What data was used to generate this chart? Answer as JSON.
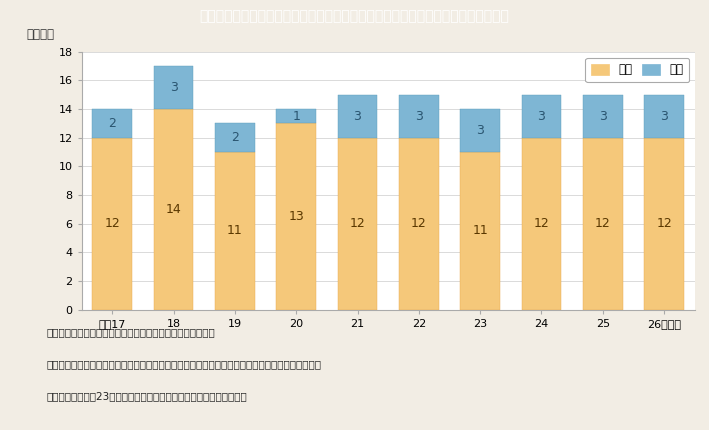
{
  "title": "Ｉ－５－６図　非就業者のうち介護・看護を理由とした離職者数の推移（男女別）",
  "ylabel": "（万人）",
  "xlabel_suffix": "（年）",
  "categories": [
    "平成17",
    "18",
    "19",
    "20",
    "21",
    "22",
    "23",
    "24",
    "25",
    "26"
  ],
  "female_values": [
    12,
    14,
    11,
    13,
    12,
    12,
    11,
    12,
    12,
    12
  ],
  "male_values": [
    2,
    3,
    2,
    1,
    3,
    3,
    3,
    3,
    3,
    3
  ],
  "female_color": "#F5C87A",
  "male_color": "#7EB6D4",
  "female_label": "女性",
  "male_label": "男性",
  "ylim": [
    0,
    18
  ],
  "yticks": [
    0,
    2,
    4,
    6,
    8,
    10,
    12,
    14,
    16,
    18
  ],
  "title_bg_color": "#18C0CC",
  "title_text_color": "#ffffff",
  "background_color": "#F2EDE4",
  "plot_bg_color": "#ffffff",
  "notes": [
    "（備考）１．総務省「労働力調査（詳細集計）」より作成。",
    "　　　　２．前職が非農林業雇用者で過去３年間の離職者のうち，現在，就業している者を除く。",
    "　　　　３．平成23年の数値は，岩手県，宮城県及び福島県を除く。"
  ],
  "note_fontsize": 7.5,
  "bar_label_fontsize": 9,
  "tick_fontsize": 8,
  "title_fontsize": 10,
  "legend_fontsize": 8.5,
  "ylabel_fontsize": 8.5
}
